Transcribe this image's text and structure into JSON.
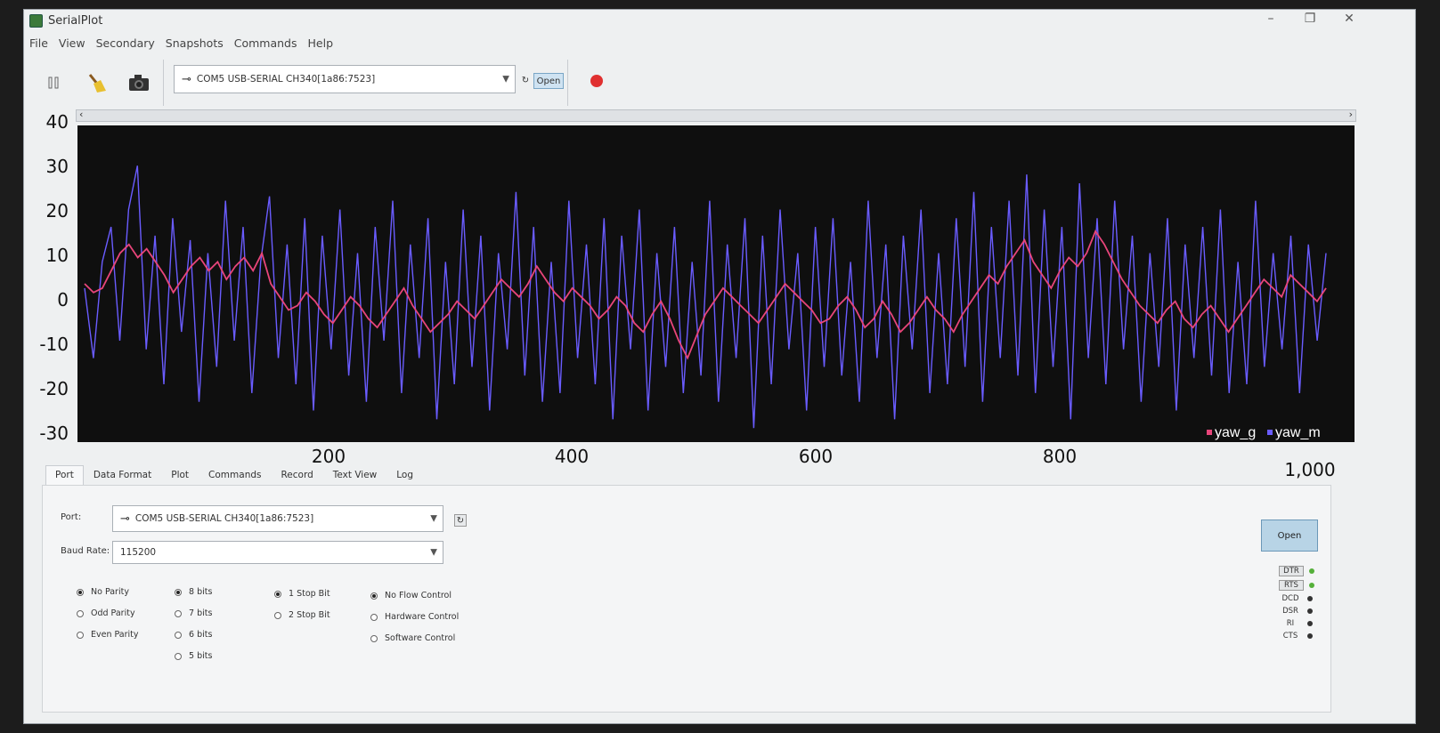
{
  "window": {
    "title": "SerialPlot",
    "minimize": "–",
    "maximize": "❐",
    "close": "✕"
  },
  "menu": [
    "File",
    "View",
    "Secondary",
    "Snapshots",
    "Commands",
    "Help"
  ],
  "toolbar": {
    "pause_icon": "pause-icon",
    "clear_icon": "broom-icon",
    "snapshot_icon": "camera-icon",
    "port_value": "COM5 USB-SERIAL CH340[1a86:7523]",
    "refresh_glyph": "↻",
    "open_label": "Open",
    "record_color": "#e03030"
  },
  "chart_data": {
    "type": "line",
    "yticks": [
      "40",
      "30",
      "20",
      "10",
      "0",
      "-10",
      "-20",
      "-30"
    ],
    "xticks": [
      "200",
      "400",
      "600",
      "800",
      "1,000"
    ],
    "ylim": [
      -30,
      40
    ],
    "xlim": [
      0,
      1020
    ],
    "background": "#0f0f0f",
    "series": [
      {
        "name": "yaw_g",
        "color": "#e8457a",
        "values": [
          5,
          3,
          4,
          8,
          12,
          14,
          11,
          13,
          10,
          7,
          3,
          6,
          9,
          11,
          8,
          10,
          6,
          9,
          11,
          8,
          12,
          5,
          2,
          -1,
          0,
          3,
          1,
          -2,
          -4,
          -1,
          2,
          0,
          -3,
          -5,
          -2,
          1,
          4,
          0,
          -3,
          -6,
          -4,
          -2,
          1,
          -1,
          -3,
          0,
          3,
          6,
          4,
          2,
          5,
          9,
          6,
          3,
          1,
          4,
          2,
          0,
          -3,
          -1,
          2,
          0,
          -4,
          -6,
          -2,
          1,
          -3,
          -8,
          -12,
          -7,
          -2,
          1,
          4,
          2,
          0,
          -2,
          -4,
          -1,
          2,
          5,
          3,
          1,
          -1,
          -4,
          -3,
          0,
          2,
          -1,
          -5,
          -3,
          1,
          -2,
          -6,
          -4,
          -1,
          2,
          -1,
          -3,
          -6,
          -2,
          1,
          4,
          7,
          5,
          9,
          12,
          15,
          10,
          7,
          4,
          8,
          11,
          9,
          12,
          17,
          14,
          10,
          6,
          3,
          0,
          -2,
          -4,
          -1,
          1,
          -3,
          -5,
          -2,
          0,
          -3,
          -6,
          -3,
          0,
          3,
          6,
          4,
          2,
          7,
          5,
          3,
          1,
          4
        ]
      },
      {
        "name": "yaw_m",
        "color": "#6a5cff",
        "values": [
          4,
          -12,
          10,
          18,
          -8,
          22,
          32,
          -10,
          16,
          -18,
          20,
          -6,
          15,
          -22,
          12,
          -14,
          24,
          -8,
          18,
          -20,
          10,
          25,
          -12,
          14,
          -18,
          20,
          -24,
          16,
          -10,
          22,
          -16,
          12,
          -22,
          18,
          -8,
          24,
          -20,
          14,
          -12,
          20,
          -26,
          10,
          -18,
          22,
          -14,
          16,
          -24,
          12,
          -10,
          26,
          -16,
          18,
          -22,
          10,
          -20,
          24,
          -12,
          14,
          -18,
          20,
          -26,
          16,
          -10,
          22,
          -24,
          12,
          -14,
          18,
          -20,
          10,
          -16,
          24,
          -22,
          14,
          -12,
          20,
          -28,
          16,
          -18,
          22,
          -10,
          12,
          -24,
          18,
          -14,
          20,
          -16,
          10,
          -22,
          24,
          -12,
          14,
          -26,
          16,
          -10,
          22,
          -20,
          12,
          -18,
          20,
          -14,
          26,
          -22,
          18,
          -12,
          24,
          -16,
          30,
          -20,
          22,
          -14,
          18,
          -26,
          28,
          -12,
          20,
          -18,
          24,
          -10,
          16,
          -22,
          12,
          -14,
          20,
          -24,
          14,
          -12,
          18,
          -16,
          22,
          -20,
          10,
          -18,
          24,
          -14,
          12,
          -10,
          16,
          -20,
          14,
          -8,
          12
        ]
      }
    ]
  },
  "tabs": [
    "Port",
    "Data Format",
    "Plot",
    "Commands",
    "Record",
    "Text View",
    "Log"
  ],
  "port_panel": {
    "port_label": "Port:",
    "port_value": "COM5 USB-SERIAL CH340[1a86:7523]",
    "baud_label": "Baud Rate:",
    "baud_value": "115200",
    "parity": [
      "No Parity",
      "Odd Parity",
      "Even Parity"
    ],
    "data_bits": [
      "8 bits",
      "7 bits",
      "6 bits",
      "5 bits"
    ],
    "stop_bits": [
      "1 Stop Bit",
      "2 Stop Bit"
    ],
    "flow": [
      "No Flow Control",
      "Hardware Control",
      "Software Control"
    ],
    "open_label": "Open",
    "pins": [
      {
        "name": "DTR",
        "color": "#55b03a",
        "boxed": true
      },
      {
        "name": "RTS",
        "color": "#55b03a",
        "boxed": true
      },
      {
        "name": "DCD",
        "color": "#333333",
        "boxed": false
      },
      {
        "name": "DSR",
        "color": "#333333",
        "boxed": false
      },
      {
        "name": "RI",
        "color": "#333333",
        "boxed": false
      },
      {
        "name": "CTS",
        "color": "#333333",
        "boxed": false
      }
    ]
  }
}
